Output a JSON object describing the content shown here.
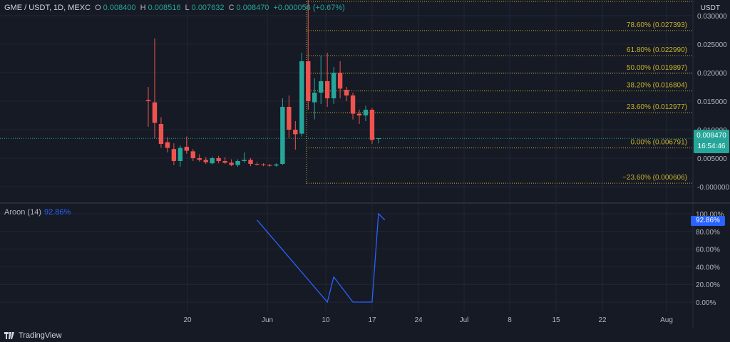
{
  "header": {
    "title": "GME / USDT, 1D, MEXC",
    "o_label": "O",
    "o_value": "0.008400",
    "h_label": "H",
    "h_value": "0.008516",
    "l_label": "L",
    "l_value": "0.007632",
    "c_label": "C",
    "c_value": "0.008470",
    "change": "+0.000056 (+0.67%)"
  },
  "unit_label": "USDT",
  "price_axis_labels": [
    "0.030000",
    "0.025000",
    "0.020000",
    "0.015000",
    "0.010000",
    "0.005000",
    "-0.000000"
  ],
  "current_price": "0.008470",
  "countdown": "16:54:46",
  "fib_levels": [
    {
      "label": "78.60% (0.027393)",
      "price": 0.027393
    },
    {
      "label": "61.80% (0.022990)",
      "price": 0.02299
    },
    {
      "label": "50.00% (0.019897)",
      "price": 0.019897
    },
    {
      "label": "38.20% (0.016804)",
      "price": 0.016804
    },
    {
      "label": "23.60% (0.012977)",
      "price": 0.012977
    },
    {
      "label": "0.00% (0.006791)",
      "price": 0.006791
    },
    {
      "label": "−23.60% (0.000606)",
      "price": 0.000606
    }
  ],
  "oscillator": {
    "name": "Aroon (14)",
    "value": "92.86%",
    "axis_labels": [
      "100.00%",
      "80.00%",
      "60.00%",
      "40.00%",
      "20.00%",
      "0.00%"
    ]
  },
  "x_axis_labels": [
    "20",
    "Jun",
    "10",
    "17",
    "24",
    "Jul",
    "8",
    "15",
    "22",
    "Aug"
  ],
  "branding": "TradingView",
  "colors": {
    "up": "#26a69a",
    "down": "#ef5350",
    "fib": "#c9b32a",
    "aroon": "#2962ff",
    "background": "#161a25",
    "grid": "#232734"
  },
  "chart_data": [
    {
      "type": "candlestick",
      "title": "GME / USDT, 1D, MEXC",
      "y_range": [
        -0.001,
        0.032
      ],
      "candles": [
        {
          "o": 0.0152,
          "h": 0.0175,
          "l": 0.0105,
          "c": 0.015
        },
        {
          "o": 0.0148,
          "h": 0.026,
          "l": 0.0085,
          "c": 0.0112
        },
        {
          "o": 0.011,
          "h": 0.0122,
          "l": 0.0068,
          "c": 0.0075
        },
        {
          "o": 0.0078,
          "h": 0.0087,
          "l": 0.006,
          "c": 0.0068
        },
        {
          "o": 0.0066,
          "h": 0.0076,
          "l": 0.0038,
          "c": 0.0045
        },
        {
          "o": 0.0045,
          "h": 0.0072,
          "l": 0.0035,
          "c": 0.0068
        },
        {
          "o": 0.007,
          "h": 0.0088,
          "l": 0.0058,
          "c": 0.0063
        },
        {
          "o": 0.0062,
          "h": 0.0066,
          "l": 0.0045,
          "c": 0.005
        },
        {
          "o": 0.005,
          "h": 0.0057,
          "l": 0.0044,
          "c": 0.0047
        },
        {
          "o": 0.0047,
          "h": 0.0052,
          "l": 0.004,
          "c": 0.0043
        },
        {
          "o": 0.0041,
          "h": 0.0053,
          "l": 0.0039,
          "c": 0.005
        },
        {
          "o": 0.005,
          "h": 0.0054,
          "l": 0.0041,
          "c": 0.0045
        },
        {
          "o": 0.0045,
          "h": 0.0052,
          "l": 0.004,
          "c": 0.0042
        },
        {
          "o": 0.0042,
          "h": 0.0048,
          "l": 0.0036,
          "c": 0.0038
        },
        {
          "o": 0.0038,
          "h": 0.0048,
          "l": 0.0035,
          "c": 0.0045
        },
        {
          "o": 0.0045,
          "h": 0.006,
          "l": 0.0042,
          "c": 0.0047
        },
        {
          "o": 0.0047,
          "h": 0.005,
          "l": 0.0036,
          "c": 0.004
        },
        {
          "o": 0.004,
          "h": 0.0043,
          "l": 0.0037,
          "c": 0.0039
        },
        {
          "o": 0.0039,
          "h": 0.0041,
          "l": 0.0036,
          "c": 0.0038
        },
        {
          "o": 0.0038,
          "h": 0.004,
          "l": 0.0035,
          "c": 0.0037
        },
        {
          "o": 0.0037,
          "h": 0.0041,
          "l": 0.0035,
          "c": 0.0039
        },
        {
          "o": 0.004,
          "h": 0.0155,
          "l": 0.0038,
          "c": 0.014
        },
        {
          "o": 0.014,
          "h": 0.016,
          "l": 0.0085,
          "c": 0.01
        },
        {
          "o": 0.01,
          "h": 0.0115,
          "l": 0.0065,
          "c": 0.0092
        },
        {
          "o": 0.0093,
          "h": 0.0235,
          "l": 0.0088,
          "c": 0.022
        },
        {
          "o": 0.022,
          "h": 0.0335,
          "l": 0.0135,
          "c": 0.015
        },
        {
          "o": 0.0148,
          "h": 0.019,
          "l": 0.0118,
          "c": 0.0165
        },
        {
          "o": 0.0165,
          "h": 0.023,
          "l": 0.0145,
          "c": 0.0185
        },
        {
          "o": 0.0185,
          "h": 0.0235,
          "l": 0.014,
          "c": 0.0155
        },
        {
          "o": 0.0155,
          "h": 0.021,
          "l": 0.0145,
          "c": 0.02
        },
        {
          "o": 0.02,
          "h": 0.022,
          "l": 0.0155,
          "c": 0.0172
        },
        {
          "o": 0.017,
          "h": 0.0175,
          "l": 0.015,
          "c": 0.016
        },
        {
          "o": 0.016,
          "h": 0.0165,
          "l": 0.0118,
          "c": 0.0128
        },
        {
          "o": 0.0128,
          "h": 0.0135,
          "l": 0.011,
          "c": 0.0125
        },
        {
          "o": 0.0125,
          "h": 0.0142,
          "l": 0.0115,
          "c": 0.0135
        },
        {
          "o": 0.0135,
          "h": 0.0138,
          "l": 0.0075,
          "c": 0.0082
        },
        {
          "o": 0.0084,
          "h": 0.0085,
          "l": 0.0076,
          "c": 0.0085
        }
      ]
    },
    {
      "type": "line",
      "title": "Aroon (14)",
      "y_range": [
        0,
        100
      ],
      "series": [
        {
          "name": "Aroon (14)",
          "points": [
            {
              "i": 17,
              "v": 93
            },
            {
              "i": 28,
              "v": 0
            },
            {
              "i": 29,
              "v": 28.5
            },
            {
              "i": 32,
              "v": 0
            },
            {
              "i": 35,
              "v": 0
            },
            {
              "i": 36,
              "v": 100
            },
            {
              "i": 37,
              "v": 92.86
            }
          ]
        }
      ]
    }
  ]
}
